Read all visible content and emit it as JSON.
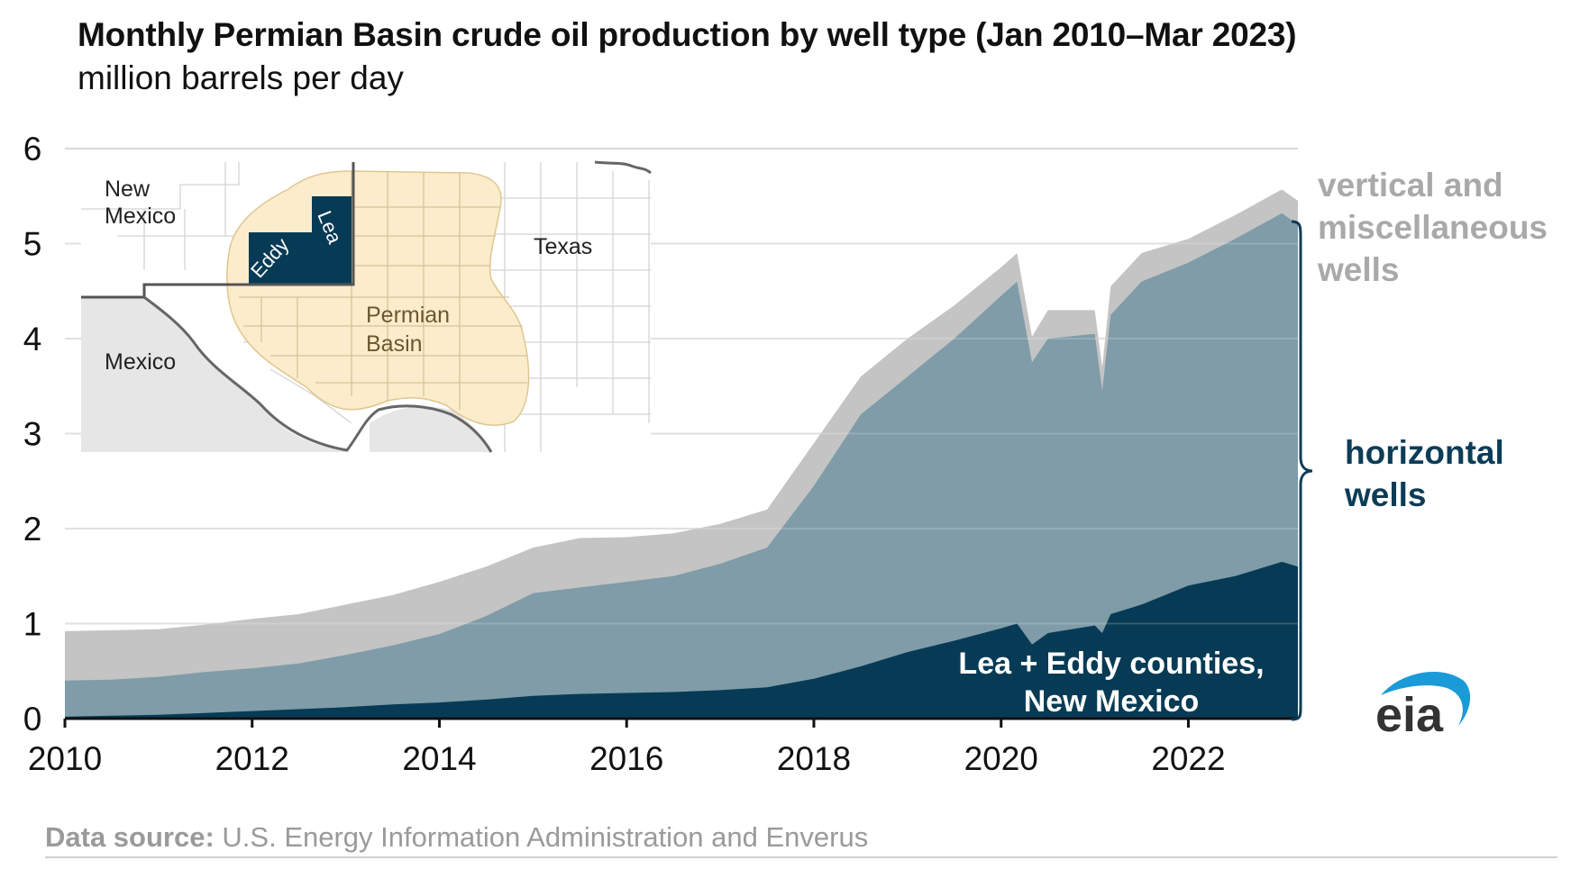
{
  "title": "Monthly Permian Basin crude oil production by well type (Jan 2010–Mar 2023)",
  "subtitle": "million barrels per day",
  "source_label": "Data source:",
  "source_text": "U.S. Energy Information Administration and Enverus",
  "logo_text": "eia",
  "colors": {
    "vertical": "#c4c4c4",
    "horizontal": "#7f9ca8",
    "lea_eddy": "#073b55",
    "gridline": "#d9d9d9",
    "vertical_label": "#a9a9a9",
    "horizontal_label": "#0c3c56",
    "basin": "#fbeccb",
    "mexico": "#e6e6e6",
    "logo_arc": "#1a9bd7"
  },
  "map_inset": {
    "new_mexico_label": "New Mexico",
    "texas_label": "Texas",
    "mexico_label": "Mexico",
    "basin_label": "Permian Basin",
    "eddy_label": "Eddy",
    "lea_label": "Lea"
  },
  "chart_data": {
    "type": "area",
    "stacked": true,
    "title": "Monthly Permian Basin crude oil production by well type (Jan 2010–Mar 2023)",
    "ylabel": "million barrels per day",
    "xlim": [
      2010.0,
      2023.17
    ],
    "ylim": [
      0,
      6
    ],
    "yticks": [
      "0",
      "1",
      "2",
      "3",
      "4",
      "5",
      "6"
    ],
    "xticks": [
      "2010",
      "2012",
      "2014",
      "2016",
      "2018",
      "2020",
      "2022"
    ],
    "grid": true,
    "x": [
      2010.0,
      2010.5,
      2011.0,
      2011.5,
      2012.0,
      2012.5,
      2013.0,
      2013.5,
      2014.0,
      2014.5,
      2015.0,
      2015.5,
      2016.0,
      2016.5,
      2017.0,
      2017.5,
      2018.0,
      2018.5,
      2019.0,
      2019.5,
      2020.0,
      2020.17,
      2020.33,
      2020.5,
      2021.0,
      2021.08,
      2021.17,
      2021.5,
      2022.0,
      2022.5,
      2023.0,
      2023.17
    ],
    "series": [
      {
        "name": "Lea + Eddy counties, New Mexico",
        "key": "lea_eddy",
        "values": [
          0.02,
          0.03,
          0.04,
          0.06,
          0.08,
          0.1,
          0.12,
          0.15,
          0.17,
          0.2,
          0.24,
          0.26,
          0.27,
          0.28,
          0.3,
          0.33,
          0.42,
          0.55,
          0.7,
          0.82,
          0.95,
          1.0,
          0.78,
          0.9,
          0.98,
          0.9,
          1.1,
          1.2,
          1.4,
          1.5,
          1.65,
          1.6
        ]
      },
      {
        "name": "horizontal wells",
        "key": "horizontal",
        "values": [
          0.38,
          0.38,
          0.4,
          0.43,
          0.45,
          0.48,
          0.55,
          0.62,
          0.72,
          0.88,
          1.08,
          1.12,
          1.17,
          1.22,
          1.33,
          1.47,
          2.03,
          2.65,
          2.9,
          3.18,
          3.5,
          3.6,
          2.97,
          3.1,
          3.07,
          2.55,
          3.15,
          3.4,
          3.4,
          3.55,
          3.67,
          3.6
        ]
      },
      {
        "name": "vertical and miscellaneous wells",
        "key": "vertical",
        "values": [
          0.52,
          0.52,
          0.5,
          0.5,
          0.52,
          0.52,
          0.53,
          0.53,
          0.55,
          0.52,
          0.48,
          0.52,
          0.47,
          0.45,
          0.42,
          0.4,
          0.45,
          0.4,
          0.4,
          0.35,
          0.3,
          0.3,
          0.27,
          0.3,
          0.25,
          0.25,
          0.3,
          0.3,
          0.25,
          0.25,
          0.25,
          0.25
        ]
      }
    ],
    "annotations": {
      "vertical": "vertical and miscellaneous wells",
      "horizontal": "horizontal wells",
      "lea_eddy": "Lea + Eddy counties, New Mexico"
    }
  }
}
